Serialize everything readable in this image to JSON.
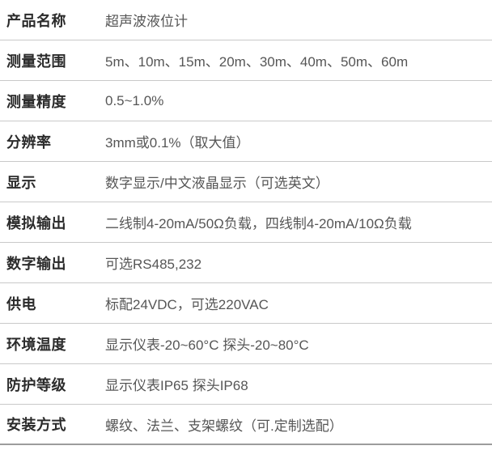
{
  "product_spec_table": {
    "rows": [
      {
        "label": "产品名称",
        "value": "超声波液位计"
      },
      {
        "label": "测量范围",
        "value": "5m、10m、15m、20m、30m、40m、50m、60m"
      },
      {
        "label": "测量精度",
        "value": "0.5~1.0%"
      },
      {
        "label": "分辨率",
        "value": "3mm或0.1%（取大值）"
      },
      {
        "label": "显示",
        "value": "数字显示/中文液晶显示（可选英文）"
      },
      {
        "label": "模拟输出",
        "value": "二线制4-20mA/50Ω负载，四线制4-20mA/10Ω负载"
      },
      {
        "label": "数字输出",
        "value": "可选RS485,232"
      },
      {
        "label": "供电",
        "value": "标配24VDC，可选220VAC"
      },
      {
        "label": "环境温度",
        "value": "显示仪表-20~60°C 探头-20~80°C"
      },
      {
        "label": "防护等级",
        "value": "显示仪表IP65 探头IP68"
      },
      {
        "label": "安装方式",
        "value": "螺纹、法兰、支架螺纹（可.定制选配）"
      }
    ]
  },
  "colors": {
    "label_text": "#2b2b2b",
    "value_text": "#565656",
    "row_divider": "#c9c9c9",
    "bottom_border": "#9c9c9c",
    "background": "#ffffff"
  }
}
